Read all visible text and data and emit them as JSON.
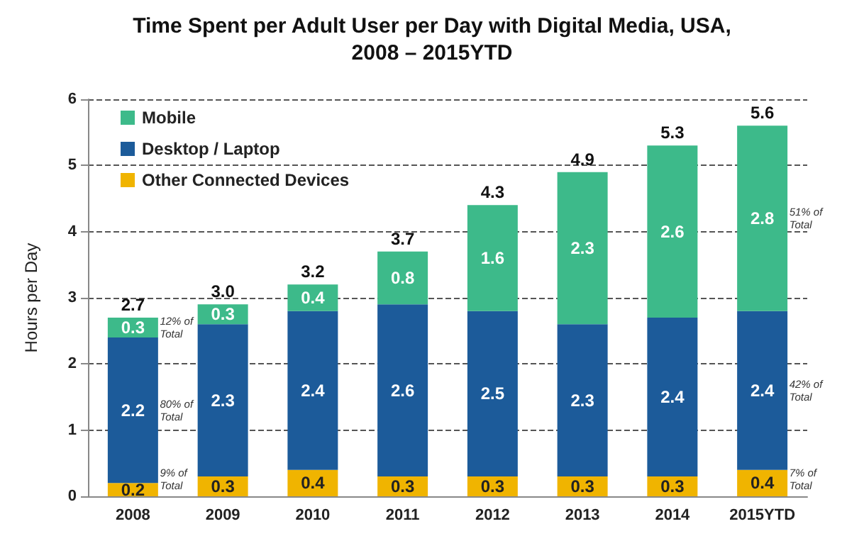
{
  "chart_data": {
    "type": "bar",
    "title": "Time Spent per Adult User per Day with Digital Media, USA,\n2008 – 2015YTD",
    "ylabel": "Hours per Day",
    "categories": [
      "2008",
      "2009",
      "2010",
      "2011",
      "2012",
      "2013",
      "2014",
      "2015YTD"
    ],
    "stacked": true,
    "series": [
      {
        "name": "Other Connected Devices",
        "color": "#f0b400",
        "values": [
          0.2,
          0.3,
          0.4,
          0.3,
          0.3,
          0.3,
          0.3,
          0.4
        ]
      },
      {
        "name": "Desktop / Laptop",
        "color": "#1c5b9a",
        "values": [
          2.2,
          2.3,
          2.4,
          2.6,
          2.5,
          2.3,
          2.4,
          2.4
        ]
      },
      {
        "name": "Mobile",
        "color": "#3dba8a",
        "values": [
          0.3,
          0.3,
          0.4,
          0.8,
          1.6,
          2.3,
          2.6,
          2.8
        ]
      }
    ],
    "totals": [
      "2.7",
      "3.0",
      "3.2",
      "3.7",
      "4.3",
      "4.9",
      "5.3",
      "5.6"
    ],
    "data_labels": true,
    "ylim": [
      0,
      6
    ],
    "yticks": [
      0,
      1,
      2,
      3,
      4,
      5,
      6
    ],
    "grid": "y",
    "legend": "top left",
    "annotations": [
      "12% of Total",
      "80% of Total",
      "9% of Total",
      "51% of Total",
      "42% of Total",
      "7% of Total"
    ]
  }
}
